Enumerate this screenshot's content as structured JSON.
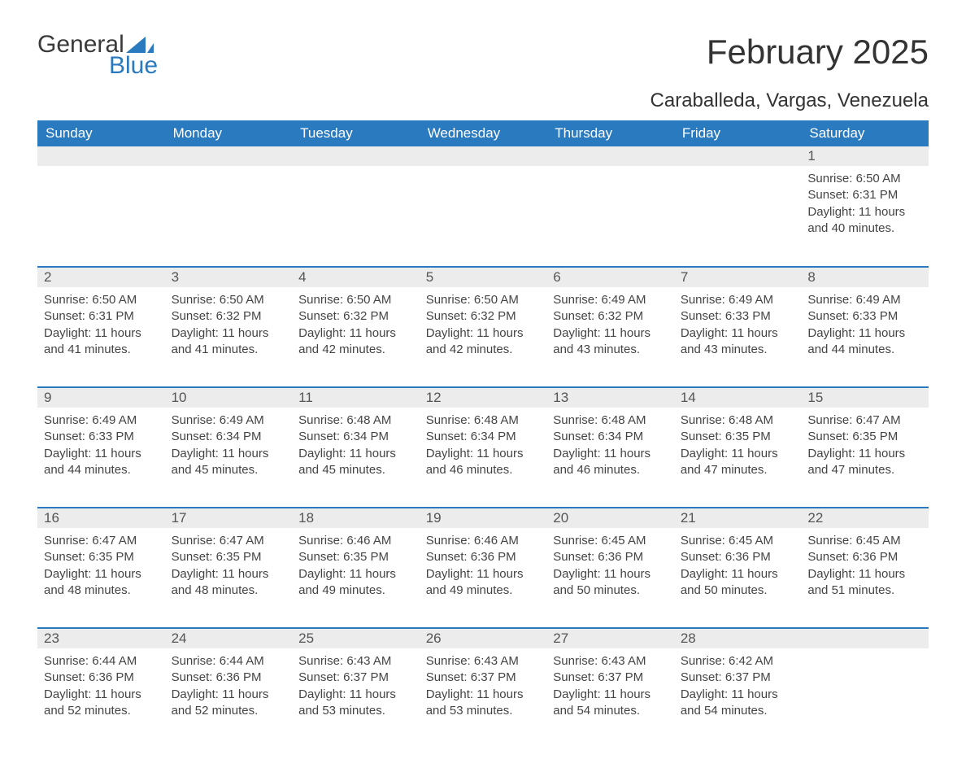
{
  "branding": {
    "logo_word1": "General",
    "logo_word2": "Blue",
    "logo_text_color": "#3a3a3a",
    "logo_accent_color": "#2a7abf"
  },
  "header": {
    "month_title": "February 2025",
    "location": "Caraballeda, Vargas, Venezuela",
    "title_color": "#333333",
    "title_fontsize": 42,
    "location_fontsize": 24
  },
  "colors": {
    "header_bg": "#2a7abf",
    "header_text": "#ffffff",
    "row_separator": "#2a7abf",
    "daynum_bg": "#ececec",
    "daynum_text": "#555555",
    "body_text": "#444444",
    "page_bg": "#ffffff"
  },
  "typography": {
    "body_fontsize": 15,
    "daynum_fontsize": 17,
    "header_fontsize": 17,
    "font_family": "Arial"
  },
  "calendar": {
    "days_of_week": [
      "Sunday",
      "Monday",
      "Tuesday",
      "Wednesday",
      "Thursday",
      "Friday",
      "Saturday"
    ],
    "weeks": [
      [
        {
          "blank": true
        },
        {
          "blank": true
        },
        {
          "blank": true
        },
        {
          "blank": true
        },
        {
          "blank": true
        },
        {
          "blank": true
        },
        {
          "day": "1",
          "sunrise": "Sunrise: 6:50 AM",
          "sunset": "Sunset: 6:31 PM",
          "daylight": "Daylight: 11 hours and 40 minutes."
        }
      ],
      [
        {
          "day": "2",
          "sunrise": "Sunrise: 6:50 AM",
          "sunset": "Sunset: 6:31 PM",
          "daylight": "Daylight: 11 hours and 41 minutes."
        },
        {
          "day": "3",
          "sunrise": "Sunrise: 6:50 AM",
          "sunset": "Sunset: 6:32 PM",
          "daylight": "Daylight: 11 hours and 41 minutes."
        },
        {
          "day": "4",
          "sunrise": "Sunrise: 6:50 AM",
          "sunset": "Sunset: 6:32 PM",
          "daylight": "Daylight: 11 hours and 42 minutes."
        },
        {
          "day": "5",
          "sunrise": "Sunrise: 6:50 AM",
          "sunset": "Sunset: 6:32 PM",
          "daylight": "Daylight: 11 hours and 42 minutes."
        },
        {
          "day": "6",
          "sunrise": "Sunrise: 6:49 AM",
          "sunset": "Sunset: 6:32 PM",
          "daylight": "Daylight: 11 hours and 43 minutes."
        },
        {
          "day": "7",
          "sunrise": "Sunrise: 6:49 AM",
          "sunset": "Sunset: 6:33 PM",
          "daylight": "Daylight: 11 hours and 43 minutes."
        },
        {
          "day": "8",
          "sunrise": "Sunrise: 6:49 AM",
          "sunset": "Sunset: 6:33 PM",
          "daylight": "Daylight: 11 hours and 44 minutes."
        }
      ],
      [
        {
          "day": "9",
          "sunrise": "Sunrise: 6:49 AM",
          "sunset": "Sunset: 6:33 PM",
          "daylight": "Daylight: 11 hours and 44 minutes."
        },
        {
          "day": "10",
          "sunrise": "Sunrise: 6:49 AM",
          "sunset": "Sunset: 6:34 PM",
          "daylight": "Daylight: 11 hours and 45 minutes."
        },
        {
          "day": "11",
          "sunrise": "Sunrise: 6:48 AM",
          "sunset": "Sunset: 6:34 PM",
          "daylight": "Daylight: 11 hours and 45 minutes."
        },
        {
          "day": "12",
          "sunrise": "Sunrise: 6:48 AM",
          "sunset": "Sunset: 6:34 PM",
          "daylight": "Daylight: 11 hours and 46 minutes."
        },
        {
          "day": "13",
          "sunrise": "Sunrise: 6:48 AM",
          "sunset": "Sunset: 6:34 PM",
          "daylight": "Daylight: 11 hours and 46 minutes."
        },
        {
          "day": "14",
          "sunrise": "Sunrise: 6:48 AM",
          "sunset": "Sunset: 6:35 PM",
          "daylight": "Daylight: 11 hours and 47 minutes."
        },
        {
          "day": "15",
          "sunrise": "Sunrise: 6:47 AM",
          "sunset": "Sunset: 6:35 PM",
          "daylight": "Daylight: 11 hours and 47 minutes."
        }
      ],
      [
        {
          "day": "16",
          "sunrise": "Sunrise: 6:47 AM",
          "sunset": "Sunset: 6:35 PM",
          "daylight": "Daylight: 11 hours and 48 minutes."
        },
        {
          "day": "17",
          "sunrise": "Sunrise: 6:47 AM",
          "sunset": "Sunset: 6:35 PM",
          "daylight": "Daylight: 11 hours and 48 minutes."
        },
        {
          "day": "18",
          "sunrise": "Sunrise: 6:46 AM",
          "sunset": "Sunset: 6:35 PM",
          "daylight": "Daylight: 11 hours and 49 minutes."
        },
        {
          "day": "19",
          "sunrise": "Sunrise: 6:46 AM",
          "sunset": "Sunset: 6:36 PM",
          "daylight": "Daylight: 11 hours and 49 minutes."
        },
        {
          "day": "20",
          "sunrise": "Sunrise: 6:45 AM",
          "sunset": "Sunset: 6:36 PM",
          "daylight": "Daylight: 11 hours and 50 minutes."
        },
        {
          "day": "21",
          "sunrise": "Sunrise: 6:45 AM",
          "sunset": "Sunset: 6:36 PM",
          "daylight": "Daylight: 11 hours and 50 minutes."
        },
        {
          "day": "22",
          "sunrise": "Sunrise: 6:45 AM",
          "sunset": "Sunset: 6:36 PM",
          "daylight": "Daylight: 11 hours and 51 minutes."
        }
      ],
      [
        {
          "day": "23",
          "sunrise": "Sunrise: 6:44 AM",
          "sunset": "Sunset: 6:36 PM",
          "daylight": "Daylight: 11 hours and 52 minutes."
        },
        {
          "day": "24",
          "sunrise": "Sunrise: 6:44 AM",
          "sunset": "Sunset: 6:36 PM",
          "daylight": "Daylight: 11 hours and 52 minutes."
        },
        {
          "day": "25",
          "sunrise": "Sunrise: 6:43 AM",
          "sunset": "Sunset: 6:37 PM",
          "daylight": "Daylight: 11 hours and 53 minutes."
        },
        {
          "day": "26",
          "sunrise": "Sunrise: 6:43 AM",
          "sunset": "Sunset: 6:37 PM",
          "daylight": "Daylight: 11 hours and 53 minutes."
        },
        {
          "day": "27",
          "sunrise": "Sunrise: 6:43 AM",
          "sunset": "Sunset: 6:37 PM",
          "daylight": "Daylight: 11 hours and 54 minutes."
        },
        {
          "day": "28",
          "sunrise": "Sunrise: 6:42 AM",
          "sunset": "Sunset: 6:37 PM",
          "daylight": "Daylight: 11 hours and 54 minutes."
        },
        {
          "blank": true
        }
      ]
    ]
  }
}
